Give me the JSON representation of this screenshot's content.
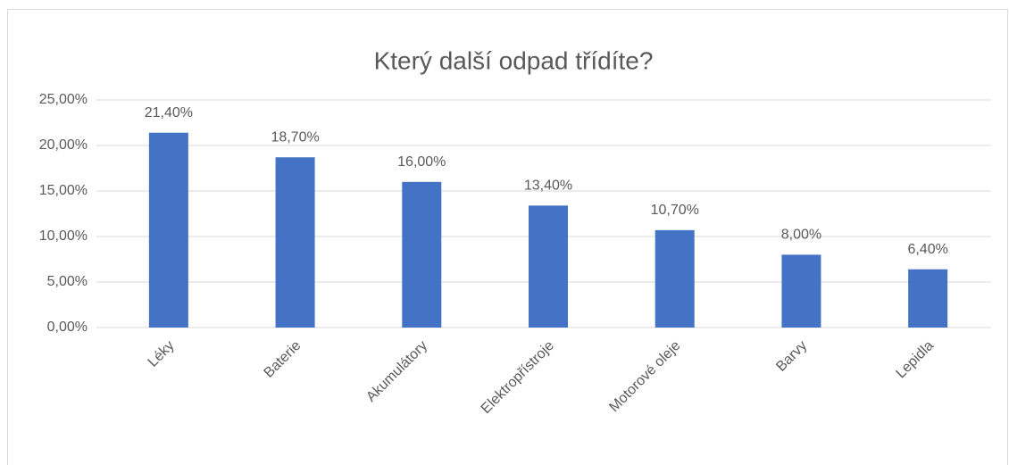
{
  "chart_data": {
    "type": "bar",
    "title": "Který další odpad třídíte?",
    "categories": [
      "Léky",
      "Baterie",
      "Akumulátory",
      "Elektropřístroje",
      "Motorové oleje",
      "Barvy",
      "Lepidla"
    ],
    "values": [
      21.4,
      18.7,
      16.0,
      13.4,
      10.7,
      8.0,
      6.4
    ],
    "value_labels": [
      "21,40%",
      "18,70%",
      "16,00%",
      "13,40%",
      "10,70%",
      "8,00%",
      "6,40%"
    ],
    "color": "#4472c4",
    "ylim": [
      0,
      25
    ],
    "yticks": [
      {
        "value": 0,
        "label": "0,00%"
      },
      {
        "value": 5,
        "label": "5,00%"
      },
      {
        "value": 10,
        "label": "10,00%"
      },
      {
        "value": 15,
        "label": "15,00%"
      },
      {
        "value": 20,
        "label": "20,00%"
      },
      {
        "value": 25,
        "label": "25,00%"
      }
    ],
    "grid": true
  }
}
